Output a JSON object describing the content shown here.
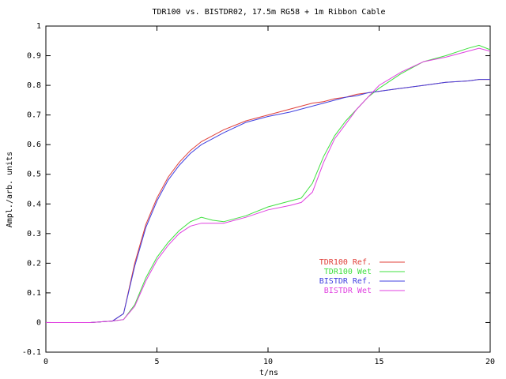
{
  "chart_data": {
    "type": "line",
    "title": "TDR100 vs. BISTDR02, 17.5m RG58 + 1m Ribbon Cable",
    "x_label": "t/ns",
    "y_label": "Ampl./arb. units",
    "x": [
      0,
      1,
      2,
      3,
      3.5,
      4,
      4.5,
      5,
      5.5,
      6,
      6.5,
      7,
      7.5,
      8,
      9,
      10,
      11,
      11.5,
      12,
      12.5,
      13,
      13.5,
      14,
      14.5,
      15,
      16,
      17,
      18,
      19,
      19.5,
      20
    ],
    "series": [
      {
        "name": "TDR100 Ref.",
        "color": "#e0403a",
        "values": [
          0,
          0,
          0,
          0.005,
          0.03,
          0.2,
          0.33,
          0.42,
          0.49,
          0.54,
          0.58,
          0.61,
          0.63,
          0.65,
          0.68,
          0.7,
          0.72,
          0.73,
          0.74,
          0.745,
          0.755,
          0.76,
          0.77,
          0.775,
          0.78,
          0.79,
          0.8,
          0.81,
          0.815,
          0.82,
          0.82
        ]
      },
      {
        "name": "TDR100 Wet",
        "color": "#40e040",
        "values": [
          0,
          0,
          0,
          0.005,
          0.01,
          0.06,
          0.15,
          0.22,
          0.27,
          0.31,
          0.34,
          0.355,
          0.345,
          0.34,
          0.36,
          0.39,
          0.41,
          0.42,
          0.47,
          0.56,
          0.63,
          0.68,
          0.72,
          0.76,
          0.79,
          0.84,
          0.88,
          0.9,
          0.925,
          0.935,
          0.92
        ]
      },
      {
        "name": "BISTDR Ref.",
        "color": "#4040e0",
        "values": [
          0,
          0,
          0,
          0.005,
          0.03,
          0.19,
          0.32,
          0.41,
          0.48,
          0.53,
          0.57,
          0.6,
          0.62,
          0.64,
          0.675,
          0.695,
          0.71,
          0.72,
          0.73,
          0.74,
          0.75,
          0.76,
          0.765,
          0.775,
          0.78,
          0.79,
          0.8,
          0.81,
          0.815,
          0.82,
          0.82
        ]
      },
      {
        "name": "BISTDR Wet",
        "color": "#e040e0",
        "values": [
          0,
          0,
          0,
          0.005,
          0.01,
          0.055,
          0.14,
          0.21,
          0.26,
          0.3,
          0.325,
          0.335,
          0.335,
          0.335,
          0.355,
          0.38,
          0.395,
          0.405,
          0.44,
          0.54,
          0.62,
          0.67,
          0.72,
          0.76,
          0.8,
          0.845,
          0.88,
          0.895,
          0.915,
          0.925,
          0.915
        ]
      }
    ],
    "xlim": [
      0,
      20
    ],
    "xticks": [
      0,
      5,
      10,
      15,
      20
    ],
    "ylim": [
      -0.1,
      1
    ],
    "yticks": [
      -0.1,
      0,
      0.1,
      0.2,
      0.3,
      0.4,
      0.5,
      0.6,
      0.7,
      0.8,
      0.9,
      1
    ],
    "grid": false,
    "legend": "lower right"
  }
}
